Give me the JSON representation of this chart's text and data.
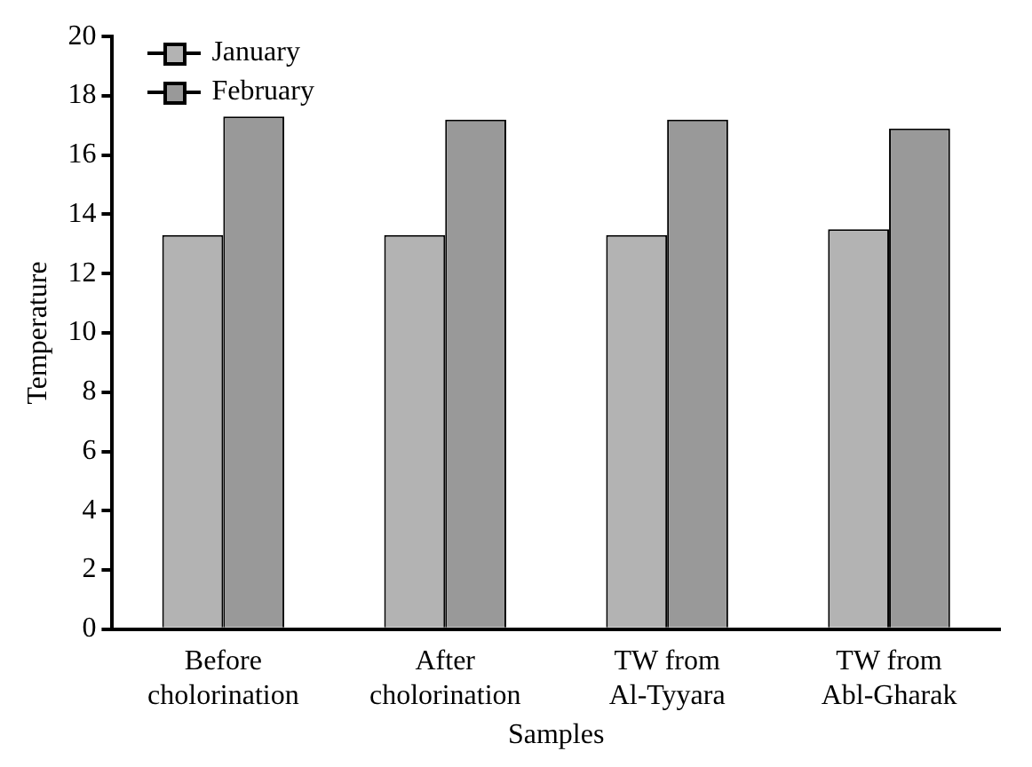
{
  "chart_data": {
    "type": "bar",
    "xlabel": "Samples",
    "ylabel": "Temperature",
    "categories": [
      "Before\ncholorination",
      "After\ncholorination",
      "TW from\nAl-Tyyara",
      "TW from\nAbl-Gharak"
    ],
    "series": [
      {
        "name": "January",
        "color": "#b3b3b3",
        "values": [
          13.3,
          13.3,
          13.3,
          13.5
        ]
      },
      {
        "name": "February",
        "color": "#999999",
        "values": [
          17.3,
          17.2,
          17.2,
          16.9
        ]
      }
    ],
    "ylim": [
      0,
      20
    ],
    "yticks": [
      0,
      2,
      4,
      6,
      8,
      10,
      12,
      14,
      16,
      18,
      20
    ],
    "grid": false,
    "legend": "top left"
  }
}
